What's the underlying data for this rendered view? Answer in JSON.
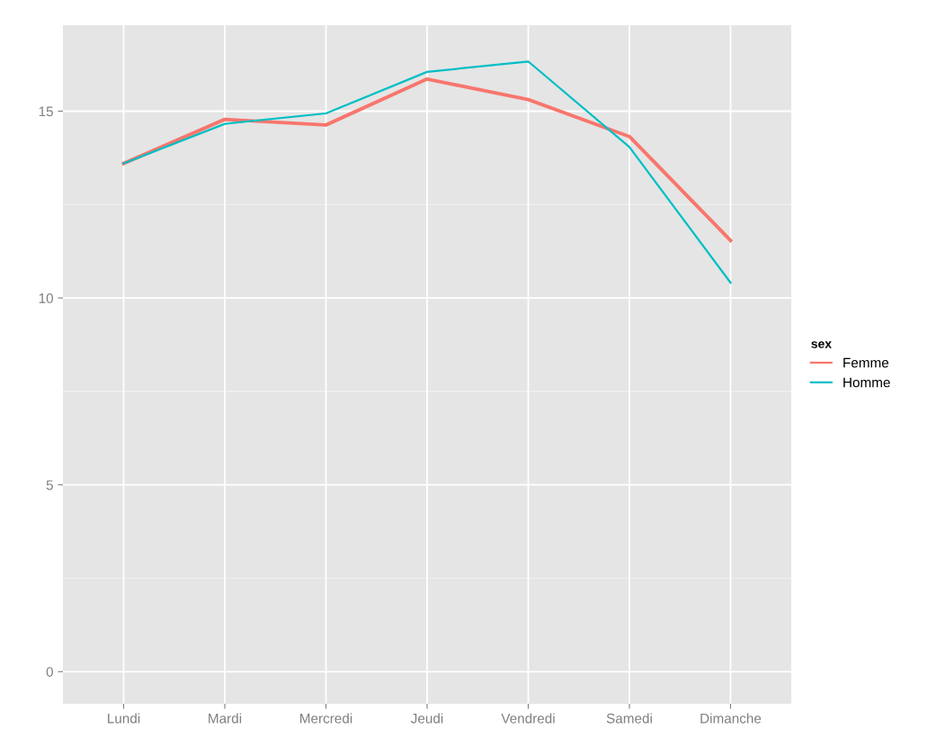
{
  "chart_data": {
    "type": "line",
    "categories": [
      "Lundi",
      "Mardi",
      "Mercredi",
      "Jeudi",
      "Vendredi",
      "Samedi",
      "Dimanche"
    ],
    "series": [
      {
        "name": "Femme",
        "color": "#f8766d",
        "values": [
          13.6,
          14.78,
          14.63,
          15.86,
          15.31,
          14.32,
          11.54
        ]
      },
      {
        "name": "Homme",
        "color": "#00bfc4",
        "values": [
          13.6,
          14.66,
          14.94,
          16.05,
          16.33,
          14.04,
          10.41
        ]
      }
    ],
    "ylim": [
      -0.86,
      17.3
    ],
    "yticks": [
      0,
      5,
      10,
      15
    ],
    "grid": true,
    "legend": "right",
    "legend_title": "sex",
    "line_style": "solid",
    "marker": "none"
  }
}
